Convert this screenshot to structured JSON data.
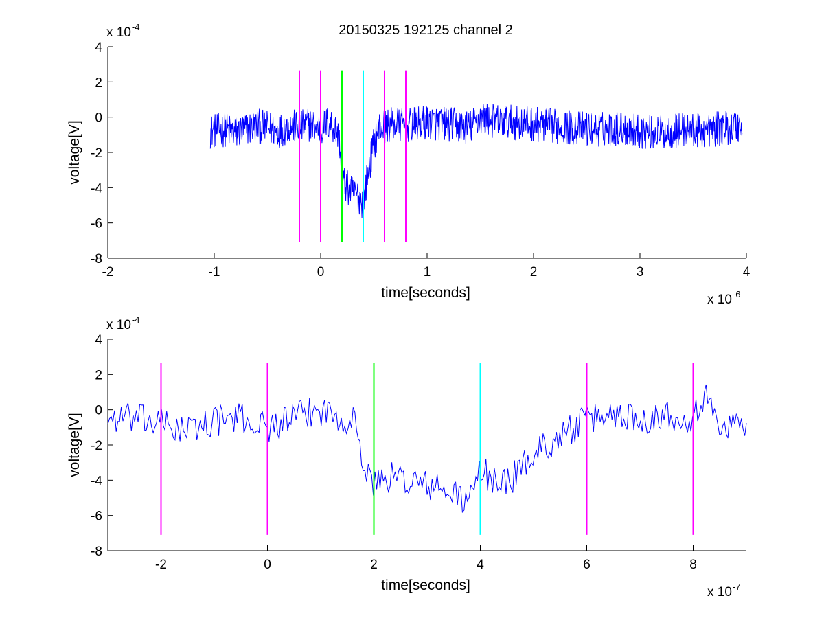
{
  "figure": {
    "title": "20150325 192125 channel 2"
  },
  "chart_data": [
    {
      "type": "line",
      "title": "20150325 192125 channel 2",
      "xlabel": "time[seconds]",
      "ylabel": "voltage[V]",
      "x_multiplier": "x 10",
      "x_exponent": "-6",
      "y_multiplier": "x 10",
      "y_exponent": "-4",
      "xlim": [
        -2,
        4
      ],
      "ylim": [
        -8,
        4
      ],
      "xticks": [
        -2,
        -1,
        0,
        1,
        2,
        3,
        4
      ],
      "xtick_labels": [
        "-2",
        "-1",
        "0",
        "1",
        "2",
        "3",
        "4"
      ],
      "yticks": [
        -8,
        -6,
        -4,
        -2,
        0,
        2,
        4
      ],
      "ytick_labels": [
        "-8",
        "-6",
        "-4",
        "-2",
        "0",
        "2",
        "4"
      ],
      "grid": false,
      "series": [
        {
          "color": "#0000ff",
          "x": [
            -1.04,
            -0.9,
            -0.8,
            -0.6,
            -0.5,
            -0.4,
            -0.3,
            -0.2,
            -0.1,
            0.0,
            0.05,
            0.1,
            0.15,
            0.18,
            0.2,
            0.25,
            0.3,
            0.35,
            0.4,
            0.45,
            0.5,
            0.55,
            0.6,
            0.7,
            0.8,
            1.0,
            1.2,
            1.4,
            1.5,
            1.6,
            1.8,
            2.0,
            2.2,
            2.4,
            2.6,
            2.8,
            3.0,
            3.2,
            3.4,
            3.6,
            3.8,
            3.96
          ],
          "y": [
            -0.8,
            -0.7,
            -0.9,
            -0.5,
            -0.6,
            -0.8,
            -0.5,
            -0.6,
            -0.4,
            -0.7,
            -0.3,
            -0.4,
            -0.8,
            -1.5,
            -3.5,
            -4.0,
            -4.3,
            -4.5,
            -4.8,
            -3.0,
            -1.5,
            -0.6,
            -0.5,
            -0.4,
            -0.5,
            -0.3,
            -0.4,
            -0.6,
            0.0,
            -0.2,
            -0.3,
            -0.4,
            -0.5,
            -0.6,
            -0.7,
            -0.6,
            -0.8,
            -0.9,
            -0.7,
            -0.8,
            -0.6,
            -0.5
          ],
          "noise": 1.0
        }
      ],
      "vlines": [
        {
          "x": -0.2,
          "color": "#ff00ff",
          "y": [
            -7.1,
            2.65
          ]
        },
        {
          "x": 0.0,
          "color": "#ff00ff",
          "y": [
            -7.1,
            2.65
          ]
        },
        {
          "x": 0.2,
          "color": "#00ff00",
          "y": [
            -7.1,
            2.65
          ]
        },
        {
          "x": 0.4,
          "color": "#00ffff",
          "y": [
            -7.1,
            2.65
          ]
        },
        {
          "x": 0.6,
          "color": "#ff00ff",
          "y": [
            -7.1,
            2.65
          ]
        },
        {
          "x": 0.8,
          "color": "#ff00ff",
          "y": [
            -7.1,
            2.65
          ]
        }
      ]
    },
    {
      "type": "line",
      "title": "",
      "xlabel": "time[seconds]",
      "ylabel": "voltage[V]",
      "x_multiplier": "x 10",
      "x_exponent": "-7",
      "y_multiplier": "x 10",
      "y_exponent": "-4",
      "xlim": [
        -3,
        9
      ],
      "ylim": [
        -8,
        4
      ],
      "xticks": [
        -2,
        0,
        2,
        4,
        6,
        8
      ],
      "xtick_labels": [
        "-2",
        "0",
        "2",
        "4",
        "6",
        "8"
      ],
      "yticks": [
        -8,
        -6,
        -4,
        -2,
        0,
        2,
        4
      ],
      "ytick_labels": [
        "-8",
        "-6",
        "-4",
        "-2",
        "0",
        "2",
        "4"
      ],
      "grid": false,
      "series": [
        {
          "color": "#0000ff",
          "x": [
            -3.0,
            -2.5,
            -2.0,
            -1.5,
            -1.0,
            -0.5,
            0.0,
            0.5,
            1.0,
            1.5,
            1.7,
            1.8,
            2.0,
            2.2,
            2.5,
            3.0,
            3.5,
            3.8,
            4.0,
            4.2,
            4.5,
            5.0,
            5.5,
            6.0,
            6.5,
            7.0,
            7.5,
            8.0,
            8.2,
            8.5,
            9.0
          ],
          "y": [
            -0.5,
            -0.5,
            -0.8,
            -1.2,
            -0.6,
            -0.5,
            -1.0,
            -0.5,
            0.0,
            -0.5,
            -0.8,
            -3.5,
            -4.2,
            -3.8,
            -3.9,
            -4.3,
            -4.8,
            -5.2,
            -3.5,
            -3.8,
            -4.2,
            -2.5,
            -1.5,
            -0.6,
            -0.2,
            -0.5,
            -0.3,
            -0.4,
            0.8,
            -0.8,
            -0.8
          ],
          "noise": 0.9
        }
      ],
      "vlines": [
        {
          "x": -2,
          "color": "#ff00ff",
          "y": [
            -7.1,
            2.65
          ]
        },
        {
          "x": 0,
          "color": "#ff00ff",
          "y": [
            -7.1,
            2.65
          ]
        },
        {
          "x": 2,
          "color": "#00ff00",
          "y": [
            -7.1,
            2.65
          ]
        },
        {
          "x": 4,
          "color": "#00ffff",
          "y": [
            -7.1,
            2.65
          ]
        },
        {
          "x": 6,
          "color": "#ff00ff",
          "y": [
            -7.1,
            2.65
          ]
        },
        {
          "x": 8,
          "color": "#ff00ff",
          "y": [
            -7.1,
            2.65
          ]
        }
      ]
    }
  ]
}
